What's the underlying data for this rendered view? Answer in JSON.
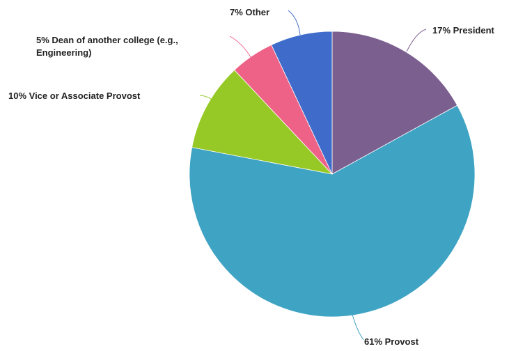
{
  "chart_data": {
    "type": "pie",
    "title": "",
    "slices": [
      {
        "label": "President",
        "value": 17,
        "display": "17% President",
        "color": "#7B5F8F"
      },
      {
        "label": "Provost",
        "value": 61,
        "display": "61% Provost",
        "color": "#3FA3C3"
      },
      {
        "label": "Vice or Associate Provost",
        "value": 10,
        "display": "10% Vice or Associate Provost",
        "color": "#97C926"
      },
      {
        "label": "Dean of another college (e.g., Engineering)",
        "value": 5,
        "display_lines": [
          "5% Dean of another college (e.g.,",
          "Engineering)"
        ],
        "color": "#EE6288"
      },
      {
        "label": "Other",
        "value": 7,
        "display": "7% Other",
        "color": "#3F6CCB"
      }
    ]
  }
}
